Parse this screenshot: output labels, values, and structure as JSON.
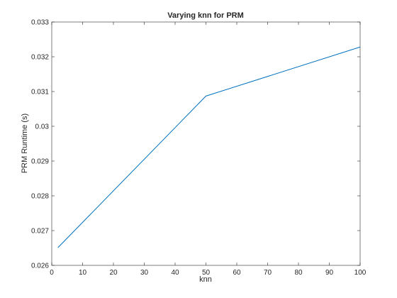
{
  "chart_data": {
    "type": "line",
    "title": "Varying knn for PRM",
    "xlabel": "knn",
    "ylabel": "PRM Runtime (s)",
    "xlim": [
      0,
      100
    ],
    "ylim": [
      0.026,
      0.033
    ],
    "xticks": [
      0,
      10,
      20,
      30,
      40,
      50,
      60,
      70,
      80,
      90,
      100
    ],
    "yticks": [
      0.026,
      0.027,
      0.028,
      0.029,
      0.03,
      0.031,
      0.032,
      0.033
    ],
    "ytick_labels": [
      "0.026",
      "0.027",
      "0.028",
      "0.029",
      "0.03",
      "0.031",
      "0.032",
      "0.033"
    ],
    "grid": false,
    "series": [
      {
        "x": [
          2,
          50,
          100
        ],
        "y": [
          0.02651,
          0.03087,
          0.03228
        ],
        "color": "#0072BD"
      }
    ]
  }
}
